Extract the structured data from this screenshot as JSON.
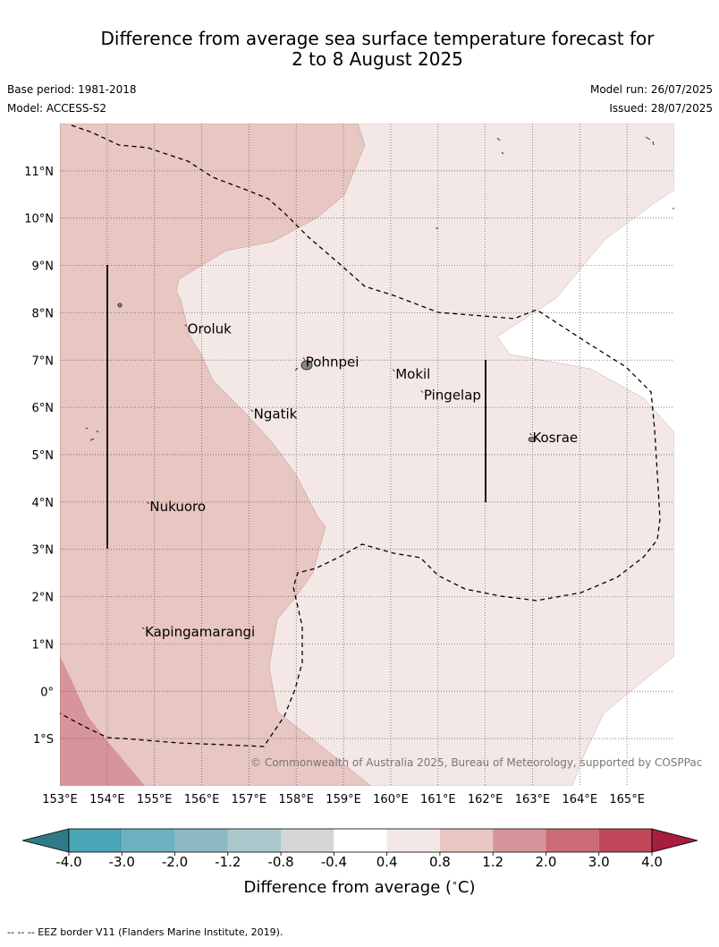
{
  "title_line1": "Difference from average sea surface temperature forecast for",
  "title_line2": "2 to 8 August 2025",
  "meta": {
    "base_period": "Base period: 1981-2018",
    "model": "Model: ACCESS-S2",
    "model_run": "Model run: 26/07/2025",
    "issued": "Issued: 28/07/2025"
  },
  "map": {
    "lon_range": [
      153,
      166
    ],
    "lat_range": [
      -2,
      12
    ],
    "lon_ticks": [
      {
        "v": 153,
        "label": "153°E"
      },
      {
        "v": 154,
        "label": "154°E"
      },
      {
        "v": 155,
        "label": "155°E"
      },
      {
        "v": 156,
        "label": "156°E"
      },
      {
        "v": 157,
        "label": "157°E"
      },
      {
        "v": 158,
        "label": "158°E"
      },
      {
        "v": 159,
        "label": "159°E"
      },
      {
        "v": 160,
        "label": "160°E"
      },
      {
        "v": 161,
        "label": "161°E"
      },
      {
        "v": 162,
        "label": "162°E"
      },
      {
        "v": 163,
        "label": "163°E"
      },
      {
        "v": 164,
        "label": "164°E"
      },
      {
        "v": 165,
        "label": "165°E"
      }
    ],
    "lat_ticks": [
      {
        "v": 11,
        "label": "11°N"
      },
      {
        "v": 10,
        "label": "10°N"
      },
      {
        "v": 9,
        "label": "9°N"
      },
      {
        "v": 8,
        "label": "8°N"
      },
      {
        "v": 7,
        "label": "7°N"
      },
      {
        "v": 6,
        "label": "6°N"
      },
      {
        "v": 5,
        "label": "5°N"
      },
      {
        "v": 4,
        "label": "4°N"
      },
      {
        "v": 3,
        "label": "3°N"
      },
      {
        "v": 2,
        "label": "2°N"
      },
      {
        "v": 1,
        "label": "1°N"
      },
      {
        "v": 0,
        "label": "0°"
      },
      {
        "v": -1,
        "label": "1°S"
      }
    ],
    "places": [
      {
        "name": "Oroluk",
        "lon": 155.7,
        "lat": 7.6
      },
      {
        "name": "Pohnpei",
        "lon": 158.2,
        "lat": 6.9
      },
      {
        "name": "Mokil",
        "lon": 160.1,
        "lat": 6.65
      },
      {
        "name": "Pingelap",
        "lon": 160.7,
        "lat": 6.2
      },
      {
        "name": "Kosrae",
        "lon": 163.0,
        "lat": 5.3
      },
      {
        "name": "Ngatik",
        "lon": 157.1,
        "lat": 5.8
      },
      {
        "name": "Nukuoro",
        "lon": 154.9,
        "lat": 3.85
      },
      {
        "name": "Kapingamarangi",
        "lon": 154.8,
        "lat": 1.2
      }
    ],
    "colors": {
      "anom_04_08": "#f4e8e7",
      "anom_08_12": "#e8c6c2",
      "anom_12_20": "#d8949b",
      "neutral": "#ffffff",
      "grid": "#555555"
    }
  },
  "attribution": "© Commonwealth of Australia 2025, Bureau of Meteorology, supported by COSPPac",
  "colorbar": {
    "label": "Difference from average (",
    "label_unit": "∘",
    "label_end": "C)",
    "ticks": [
      "-4.0",
      "-3.0",
      "-2.0",
      "-1.2",
      "-0.8",
      "-0.4",
      "0.4",
      "0.8",
      "1.2",
      "2.0",
      "3.0",
      "4.0"
    ],
    "colors": [
      "#2f7a86",
      "#4aa5b6",
      "#6cb1c0",
      "#8db9c5",
      "#aac8cc",
      "#d4d7d6",
      "#ffffff",
      "#f4e8e7",
      "#e8c6c2",
      "#d8949b",
      "#cc6b75",
      "#c0485a",
      "#a51e3e"
    ]
  },
  "footnote": "--  --  -- EEZ border V11 (Flanders Marine Institute, 2019)."
}
